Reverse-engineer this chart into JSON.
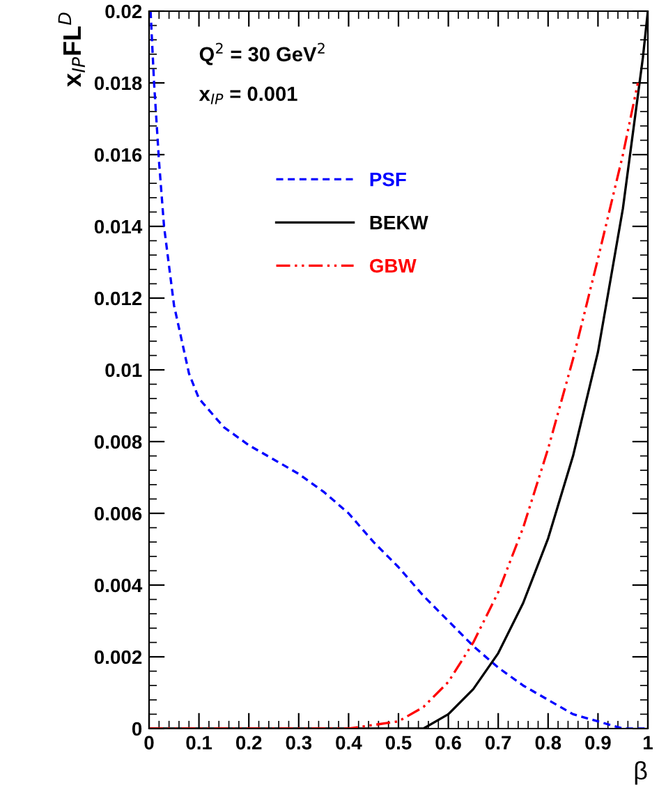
{
  "chart_data": {
    "type": "line",
    "xlabel": "β",
    "ylabel": "x$_{IP}$FL$^{D}$",
    "annotations": [
      "Q$^{2}$ = 30 GeV$^{2}$",
      "x$_{IP}$ = 0.001"
    ],
    "xlim": [
      0,
      1
    ],
    "ylim": [
      0,
      0.02
    ],
    "xticks": [
      0,
      0.1,
      0.2,
      0.3,
      0.4,
      0.5,
      0.6,
      0.7,
      0.8,
      0.9,
      1
    ],
    "yticks": [
      0,
      0.002,
      0.004,
      0.006,
      0.008,
      0.01,
      0.012,
      0.014,
      0.016,
      0.018,
      0.02
    ],
    "grid": false,
    "legend": "top left",
    "marker": "none",
    "series": [
      {
        "name": "PSF",
        "color": "#0000ff",
        "line_style": "dashed",
        "x": [
          0.003,
          0.01,
          0.02,
          0.03,
          0.05,
          0.08,
          0.1,
          0.15,
          0.2,
          0.25,
          0.3,
          0.35,
          0.4,
          0.45,
          0.5,
          0.55,
          0.6,
          0.65,
          0.7,
          0.75,
          0.8,
          0.85,
          0.9,
          0.95,
          1.0
        ],
        "values": [
          0.02,
          0.018,
          0.0158,
          0.014,
          0.0118,
          0.0099,
          0.0092,
          0.0084,
          0.0079,
          0.0075,
          0.0071,
          0.0066,
          0.006,
          0.0052,
          0.0045,
          0.0037,
          0.003,
          0.0023,
          0.0017,
          0.0012,
          0.0008,
          0.0004,
          0.0002,
          0.0,
          0.0
        ]
      },
      {
        "name": "BEKW",
        "color": "#000000",
        "line_style": "solid",
        "x": [
          0.0,
          0.5,
          0.55,
          0.6,
          0.65,
          0.7,
          0.75,
          0.8,
          0.85,
          0.9,
          0.95,
          0.99,
          1.0
        ],
        "values": [
          0.0,
          0.0,
          0.0,
          0.0004,
          0.0011,
          0.0021,
          0.0035,
          0.0053,
          0.0076,
          0.0105,
          0.0145,
          0.0187,
          0.02
        ]
      },
      {
        "name": "GBW",
        "color": "#ff0000",
        "line_style": "dashdot",
        "x": [
          0.0,
          0.4,
          0.45,
          0.5,
          0.55,
          0.6,
          0.65,
          0.7,
          0.75,
          0.8,
          0.85,
          0.9,
          0.95,
          0.98
        ],
        "values": [
          0.0,
          0.0,
          0.0001,
          0.0002,
          0.0006,
          0.0013,
          0.0024,
          0.0038,
          0.0056,
          0.0078,
          0.0103,
          0.0131,
          0.016,
          0.018
        ]
      }
    ]
  }
}
